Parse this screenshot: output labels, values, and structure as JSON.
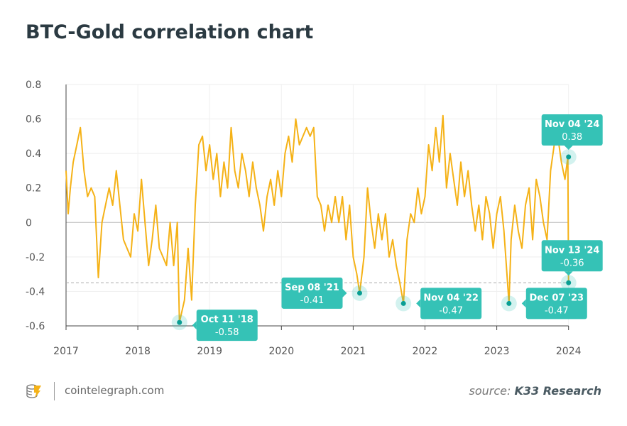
{
  "title": "BTC-Gold correlation chart",
  "footer": {
    "site": "cointelegraph.com",
    "source_prefix": "source:",
    "source_name": "K33 Research",
    "logo_icon": "cointelegraph-logo-icon"
  },
  "colors": {
    "line": "#f5b217",
    "annotation": "#35c2b6",
    "point": "#0a9e93",
    "title": "#2b3a42"
  },
  "chart_data": {
    "type": "line",
    "title": "BTC-Gold correlation chart",
    "xlim": [
      2017,
      2024.05
    ],
    "ylim": [
      -0.6,
      0.8
    ],
    "x_ticks": [
      "2017",
      "2018",
      "2019",
      "2020",
      "2021",
      "2022",
      "2023",
      "2024"
    ],
    "y_ticks": [
      "0.8",
      "0.6",
      "0.4",
      "0.2",
      "0",
      "-0.2",
      "-0.4",
      "-0.6"
    ],
    "grid": true,
    "reference_line": -0.35,
    "x": [
      2017.0,
      2017.03,
      2017.06,
      2017.1,
      2017.15,
      2017.2,
      2017.25,
      2017.3,
      2017.35,
      2017.4,
      2017.45,
      2017.5,
      2017.55,
      2017.6,
      2017.65,
      2017.7,
      2017.75,
      2017.8,
      2017.85,
      2017.9,
      2017.95,
      2018.0,
      2018.05,
      2018.1,
      2018.15,
      2018.2,
      2018.25,
      2018.3,
      2018.35,
      2018.4,
      2018.45,
      2018.5,
      2018.55,
      2018.58,
      2018.65,
      2018.7,
      2018.75,
      2018.8,
      2018.85,
      2018.9,
      2018.95,
      2019.0,
      2019.05,
      2019.1,
      2019.15,
      2019.2,
      2019.25,
      2019.3,
      2019.35,
      2019.4,
      2019.45,
      2019.5,
      2019.55,
      2019.6,
      2019.65,
      2019.7,
      2019.75,
      2019.8,
      2019.85,
      2019.9,
      2019.95,
      2020.0,
      2020.05,
      2020.1,
      2020.15,
      2020.2,
      2020.25,
      2020.3,
      2020.35,
      2020.4,
      2020.45,
      2020.5,
      2020.55,
      2020.6,
      2020.65,
      2020.7,
      2020.75,
      2020.8,
      2020.85,
      2020.9,
      2020.95,
      2021.0,
      2021.05,
      2021.09,
      2021.15,
      2021.2,
      2021.25,
      2021.3,
      2021.35,
      2021.4,
      2021.45,
      2021.5,
      2021.55,
      2021.6,
      2021.65,
      2021.7,
      2021.75,
      2021.8,
      2021.85,
      2021.9,
      2021.95,
      2022.0,
      2022.05,
      2022.1,
      2022.15,
      2022.2,
      2022.25,
      2022.3,
      2022.35,
      2022.4,
      2022.45,
      2022.5,
      2022.55,
      2022.6,
      2022.65,
      2022.7,
      2022.75,
      2022.8,
      2022.85,
      2022.9,
      2022.95,
      2023.0,
      2023.05,
      2023.1,
      2023.17,
      2023.2,
      2023.25,
      2023.3,
      2023.35,
      2023.4,
      2023.45,
      2023.5,
      2023.55,
      2023.6,
      2023.65,
      2023.7,
      2023.75,
      2023.8,
      2023.85,
      2023.9,
      2023.95,
      2023.99,
      2024.0
    ],
    "y": [
      0.3,
      0.05,
      0.2,
      0.35,
      0.45,
      0.55,
      0.3,
      0.15,
      0.2,
      0.15,
      -0.32,
      0.0,
      0.1,
      0.2,
      0.1,
      0.3,
      0.1,
      -0.1,
      -0.15,
      -0.2,
      0.05,
      -0.05,
      0.25,
      0.0,
      -0.25,
      -0.1,
      0.1,
      -0.15,
      -0.2,
      -0.25,
      0.0,
      -0.25,
      0.0,
      -0.58,
      -0.45,
      -0.15,
      -0.45,
      0.1,
      0.45,
      0.5,
      0.3,
      0.45,
      0.25,
      0.4,
      0.15,
      0.35,
      0.2,
      0.55,
      0.3,
      0.2,
      0.4,
      0.3,
      0.15,
      0.35,
      0.2,
      0.1,
      -0.05,
      0.15,
      0.25,
      0.1,
      0.3,
      0.15,
      0.4,
      0.5,
      0.35,
      0.6,
      0.45,
      0.5,
      0.55,
      0.5,
      0.55,
      0.15,
      0.1,
      -0.05,
      0.1,
      0.0,
      0.15,
      0.0,
      0.15,
      -0.1,
      0.1,
      -0.2,
      -0.3,
      -0.41,
      -0.2,
      0.2,
      0.0,
      -0.15,
      0.05,
      -0.1,
      0.05,
      -0.2,
      -0.1,
      -0.25,
      -0.35,
      -0.47,
      -0.1,
      0.05,
      0.0,
      0.2,
      0.05,
      0.15,
      0.45,
      0.3,
      0.55,
      0.35,
      0.62,
      0.2,
      0.4,
      0.25,
      0.1,
      0.35,
      0.15,
      0.3,
      0.1,
      -0.05,
      0.1,
      -0.1,
      0.15,
      0.05,
      -0.15,
      0.05,
      0.15,
      -0.05,
      -0.47,
      -0.1,
      0.1,
      -0.05,
      -0.15,
      0.1,
      0.2,
      -0.1,
      0.25,
      0.15,
      0.0,
      -0.1,
      0.3,
      0.45,
      0.5,
      0.35,
      0.25,
      0.38,
      -0.36
    ],
    "annotations": [
      {
        "date": "Oct 11 '18",
        "value": "-0.58",
        "x": 2018.58,
        "y": -0.58,
        "side": "right"
      },
      {
        "date": "Sep 08 '21",
        "value": "-0.41",
        "x": 2021.09,
        "y": -0.41,
        "side": "left"
      },
      {
        "date": "Nov 04 '22",
        "value": "-0.47",
        "x": 2021.7,
        "y": -0.47,
        "side": "right"
      },
      {
        "date": "Dec 07 '23",
        "value": "-0.47",
        "x": 2023.17,
        "y": -0.47,
        "side": "right"
      },
      {
        "date": "Nov 04 '24",
        "value": "0.38",
        "x": 2024.0,
        "y": 0.38,
        "side": "top"
      },
      {
        "date": "Nov 13 '24",
        "value": "-0.36",
        "x": 2024.0,
        "y": -0.35,
        "side": "top"
      }
    ]
  }
}
